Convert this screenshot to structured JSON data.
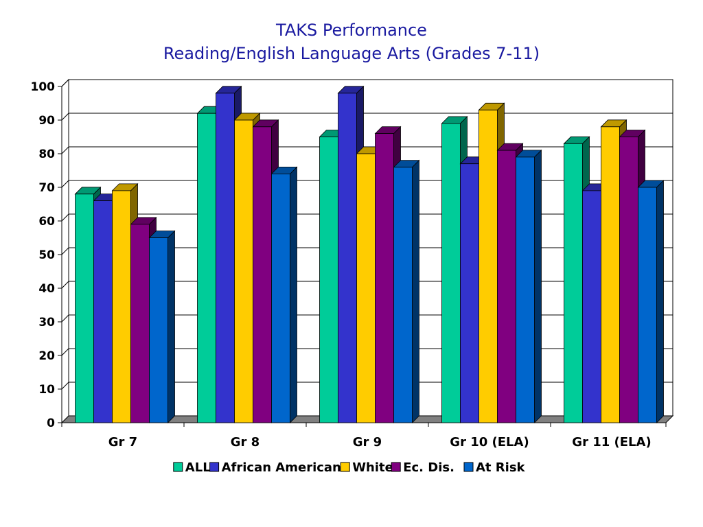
{
  "chart_data": {
    "type": "bar",
    "title": "TAKS Performance",
    "subtitle": "Reading/English Language Arts (Grades 7-11)",
    "categories": [
      "Gr 7",
      "Gr 8",
      "Gr 9",
      "Gr 10 (ELA)",
      "Gr 11 (ELA)"
    ],
    "ylim": [
      0,
      100
    ],
    "yticks": [
      0,
      10,
      20,
      30,
      40,
      50,
      60,
      70,
      80,
      90,
      100
    ],
    "grid": true,
    "legend_position": "bottom",
    "series": [
      {
        "name": "ALL",
        "color": "#00cc99",
        "values": [
          68,
          92,
          85,
          89,
          83
        ]
      },
      {
        "name": "African American",
        "color": "#3333cc",
        "values": [
          66,
          98,
          98,
          77,
          69
        ]
      },
      {
        "name": "White",
        "color": "#ffcc00",
        "values": [
          69,
          90,
          80,
          93,
          88
        ]
      },
      {
        "name": "Ec. Dis.",
        "color": "#800080",
        "values": [
          59,
          88,
          86,
          81,
          85
        ]
      },
      {
        "name": "At Risk",
        "color": "#0066cc",
        "values": [
          55,
          74,
          76,
          79,
          70
        ]
      }
    ]
  }
}
